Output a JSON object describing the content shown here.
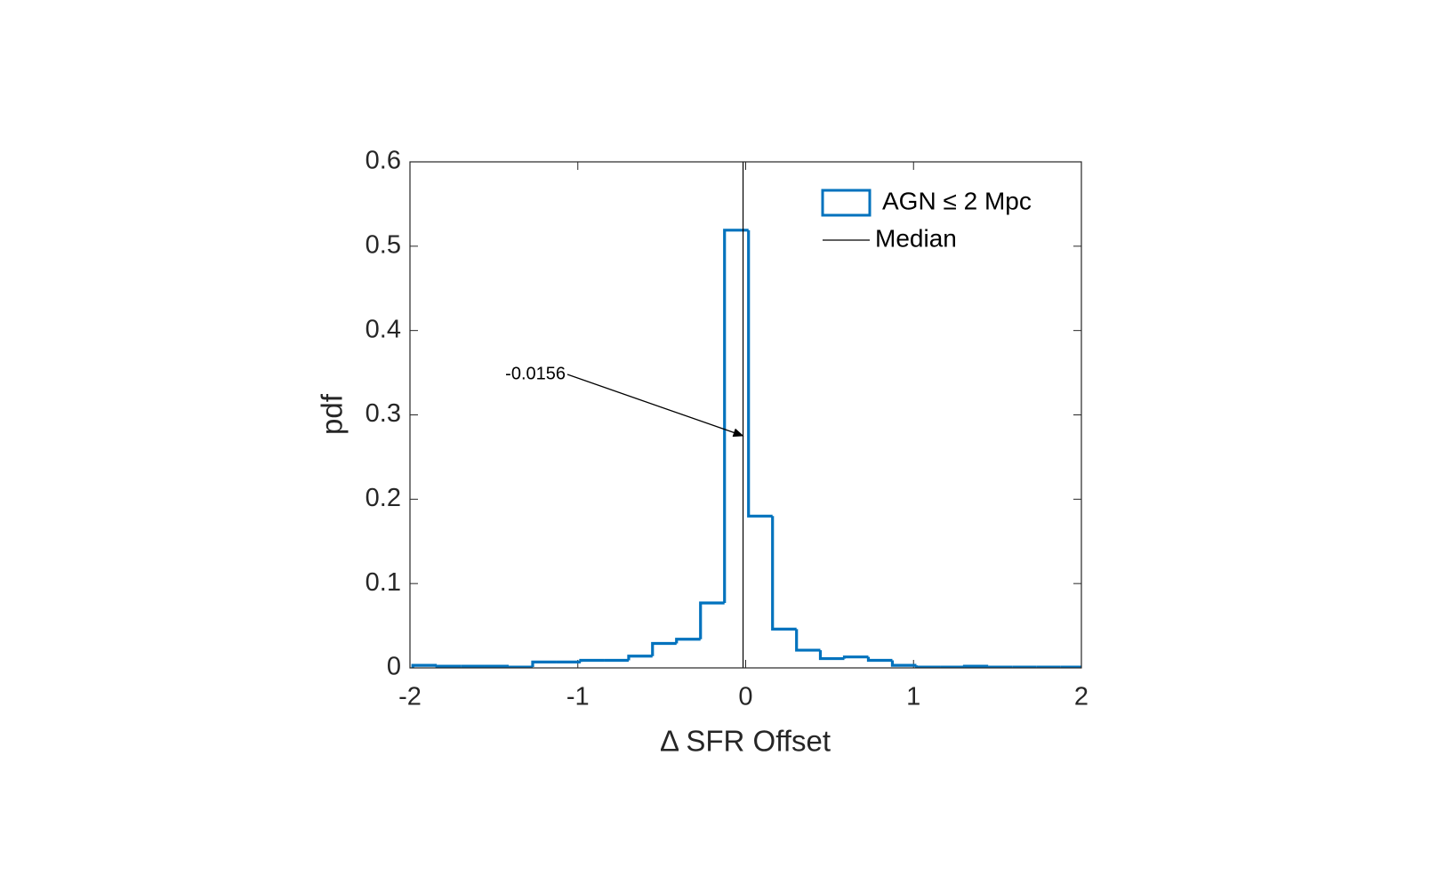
{
  "chart_data": {
    "type": "histogram",
    "xlabel": "Δ SFR Offset",
    "ylabel": "pdf",
    "bins": [
      -1.983,
      -1.84,
      -1.697,
      -1.555,
      -1.412,
      -1.269,
      -1.126,
      -0.983,
      -0.84,
      -0.697,
      -0.555,
      -0.412,
      -0.269,
      -0.126,
      0.017,
      0.16,
      0.303,
      0.445,
      0.588,
      0.731,
      0.874,
      1.017,
      1.16,
      1.303,
      1.445,
      1.588,
      1.731,
      1.874,
      2.017
    ],
    "series": [
      {
        "name": "AGN ≤ 2 Mpc",
        "color": "#0072bd",
        "values": [
          0.003,
          0.002,
          0.002,
          0.002,
          0.001,
          0.007,
          0.007,
          0.009,
          0.009,
          0.014,
          0.029,
          0.034,
          0.077,
          0.519,
          0.18,
          0.046,
          0.021,
          0.011,
          0.013,
          0.009,
          0.003,
          0.001,
          0.001,
          0.002,
          0.001,
          0.001,
          0.001,
          0.001
        ]
      }
    ],
    "median": {
      "name": "Median",
      "color": "#000000",
      "value": -0.0156
    },
    "xlim": [
      -2,
      2
    ],
    "xticks": [
      -2,
      -1,
      0,
      1,
      2
    ],
    "ylim": [
      0,
      0.6
    ],
    "yticks": [
      0,
      0.1,
      0.2,
      0.3,
      0.4,
      0.5,
      0.6
    ],
    "legend": "upper right"
  }
}
